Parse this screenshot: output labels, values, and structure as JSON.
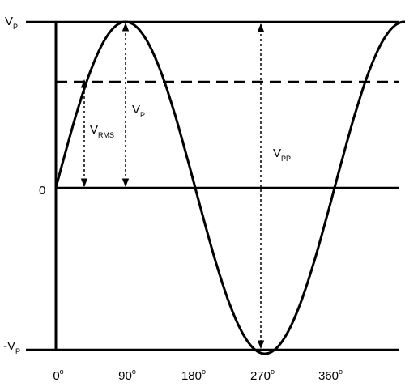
{
  "labels": {
    "y_top": "V",
    "y_top_sub": "P",
    "y_zero": "0",
    "y_bottom": "-V",
    "y_bottom_sub": "P",
    "vrms": "V",
    "vrms_sub": "RMS",
    "vp": "V",
    "vp_sub": "P",
    "vpp": "V",
    "vpp_sub": "PP"
  },
  "x_ticks": [
    {
      "main": "0",
      "sup": "o"
    },
    {
      "main": "90",
      "sup": "o"
    },
    {
      "main": "180",
      "sup": "o"
    },
    {
      "main": "270",
      "sup": "o"
    },
    {
      "main": "360",
      "sup": "o"
    }
  ],
  "colors": {
    "line": "#000000",
    "background": "#ffffff"
  }
}
